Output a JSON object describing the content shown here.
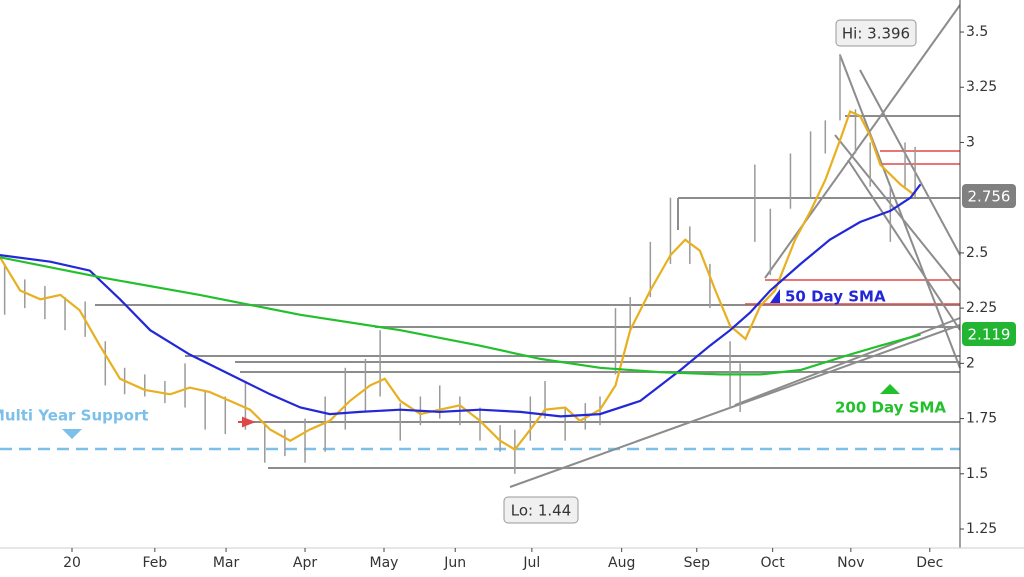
{
  "chart_data": {
    "type": "line",
    "xlim": [
      0,
      12.4
    ],
    "ylim": [
      1.164,
      3.645
    ],
    "xticks": [
      {
        "value": 0.93,
        "label": "20"
      },
      {
        "value": 2.0,
        "label": "Feb"
      },
      {
        "value": 2.92,
        "label": "Mar"
      },
      {
        "value": 3.94,
        "label": "Apr"
      },
      {
        "value": 4.96,
        "label": "May"
      },
      {
        "value": 5.88,
        "label": "Jun"
      },
      {
        "value": 6.87,
        "label": "Jul"
      },
      {
        "value": 8.03,
        "label": "Aug"
      },
      {
        "value": 9.0,
        "label": "Sep"
      },
      {
        "value": 9.98,
        "label": "Oct"
      },
      {
        "value": 10.99,
        "label": "Nov"
      },
      {
        "value": 12.01,
        "label": "Dec"
      }
    ],
    "yticks": [
      1.25,
      1.5,
      1.75,
      2,
      2.25,
      2.5,
      3,
      3.25,
      3.5
    ],
    "price": {
      "color": "#9a9a9a",
      "x": [
        0.06,
        0.32,
        0.58,
        0.84,
        1.1,
        1.36,
        1.61,
        1.87,
        2.13,
        2.39,
        2.65,
        2.91,
        3.17,
        3.42,
        3.68,
        3.94,
        4.2,
        4.46,
        4.72,
        4.91,
        5.17,
        5.43,
        5.68,
        5.94,
        6.2,
        6.46,
        6.65,
        6.85,
        7.04,
        7.3,
        7.56,
        7.75,
        7.95,
        8.14,
        8.4,
        8.66,
        8.91,
        9.17,
        9.43,
        9.56,
        9.75,
        9.95,
        10.21,
        10.47,
        10.66,
        10.85,
        11.05,
        11.24,
        11.5,
        11.69,
        11.82
      ],
      "high": [
        2.45,
        2.38,
        2.35,
        2.3,
        2.28,
        2.1,
        1.98,
        1.95,
        1.92,
        2.0,
        1.88,
        1.85,
        1.92,
        1.72,
        1.7,
        1.75,
        1.85,
        1.98,
        2.02,
        2.15,
        1.82,
        1.85,
        1.9,
        1.85,
        1.8,
        1.72,
        1.7,
        1.85,
        1.92,
        1.8,
        1.82,
        1.85,
        2.25,
        2.3,
        2.55,
        2.75,
        2.62,
        2.45,
        2.1,
        2.0,
        2.9,
        2.7,
        2.95,
        3.05,
        3.1,
        3.4,
        3.15,
        3.0,
        2.8,
        3.0,
        2.98
      ],
      "low": [
        2.22,
        2.25,
        2.2,
        2.15,
        2.12,
        1.9,
        1.86,
        1.85,
        1.82,
        1.8,
        1.7,
        1.68,
        1.7,
        1.55,
        1.58,
        1.55,
        1.6,
        1.7,
        1.78,
        1.85,
        1.65,
        1.72,
        1.75,
        1.72,
        1.65,
        1.6,
        1.5,
        1.65,
        1.75,
        1.65,
        1.7,
        1.72,
        1.95,
        2.15,
        2.3,
        2.45,
        2.45,
        2.25,
        1.8,
        1.78,
        2.55,
        2.4,
        2.7,
        2.75,
        2.95,
        3.1,
        2.95,
        2.8,
        2.55,
        2.8,
        2.75
      ]
    },
    "series": [
      {
        "color": "#e8b020",
        "x": [
          0,
          0.26,
          0.52,
          0.78,
          1.03,
          1.29,
          1.55,
          1.87,
          2.2,
          2.45,
          2.71,
          2.97,
          3.23,
          3.49,
          3.75,
          4.0,
          4.26,
          4.52,
          4.78,
          4.97,
          5.17,
          5.43,
          5.68,
          5.94,
          6.2,
          6.46,
          6.65,
          6.85,
          7.04,
          7.3,
          7.49,
          7.75,
          7.95,
          8.14,
          8.4,
          8.66,
          8.85,
          9.04,
          9.24,
          9.43,
          9.63,
          9.82,
          10.01,
          10.27,
          10.47,
          10.66,
          10.85,
          10.98,
          11.11,
          11.24,
          11.37,
          11.63,
          11.82
        ],
        "values": [
          2.48,
          2.33,
          2.29,
          2.31,
          2.24,
          2.08,
          1.93,
          1.88,
          1.86,
          1.89,
          1.87,
          1.83,
          1.79,
          1.7,
          1.65,
          1.7,
          1.74,
          1.83,
          1.9,
          1.93,
          1.83,
          1.77,
          1.79,
          1.81,
          1.74,
          1.65,
          1.61,
          1.7,
          1.79,
          1.8,
          1.74,
          1.79,
          1.9,
          2.15,
          2.33,
          2.49,
          2.56,
          2.51,
          2.33,
          2.17,
          2.11,
          2.26,
          2.33,
          2.56,
          2.69,
          2.83,
          3.01,
          3.14,
          3.12,
          3.03,
          2.9,
          2.81,
          2.76
        ]
      },
      {
        "name": "50 Day SMA",
        "color": "#2228d8",
        "x": [
          0,
          0.65,
          1.16,
          1.55,
          1.94,
          2.45,
          2.97,
          3.49,
          3.88,
          4.26,
          4.65,
          5.17,
          5.68,
          6.2,
          6.72,
          7.24,
          7.75,
          8.27,
          8.79,
          9.17,
          9.43,
          9.69,
          9.95,
          10.34,
          10.72,
          11.11,
          11.5,
          11.76,
          11.89
        ],
        "values": [
          2.49,
          2.46,
          2.42,
          2.29,
          2.15,
          2.04,
          1.95,
          1.86,
          1.8,
          1.77,
          1.78,
          1.79,
          1.78,
          1.79,
          1.78,
          1.76,
          1.77,
          1.83,
          1.97,
          2.08,
          2.15,
          2.23,
          2.33,
          2.45,
          2.56,
          2.64,
          2.69,
          2.75,
          2.81
        ]
      },
      {
        "name": "200 Day SMA",
        "color": "#22c02c",
        "x": [
          0,
          1.29,
          2.58,
          3.88,
          5.17,
          6.2,
          6.98,
          7.75,
          8.53,
          9.3,
          9.82,
          10.34,
          10.98,
          11.37,
          11.89
        ],
        "values": [
          2.48,
          2.39,
          2.31,
          2.22,
          2.15,
          2.08,
          2.02,
          1.98,
          1.96,
          1.95,
          1.95,
          1.97,
          2.04,
          2.08,
          2.13
        ]
      }
    ],
    "annotations": [
      {
        "text": "Hi: 3.396"
      },
      {
        "text": "Lo: 1.44"
      },
      {
        "text": "2.756"
      },
      {
        "text": "2.119"
      },
      {
        "text": "Multi Year Support"
      }
    ]
  }
}
